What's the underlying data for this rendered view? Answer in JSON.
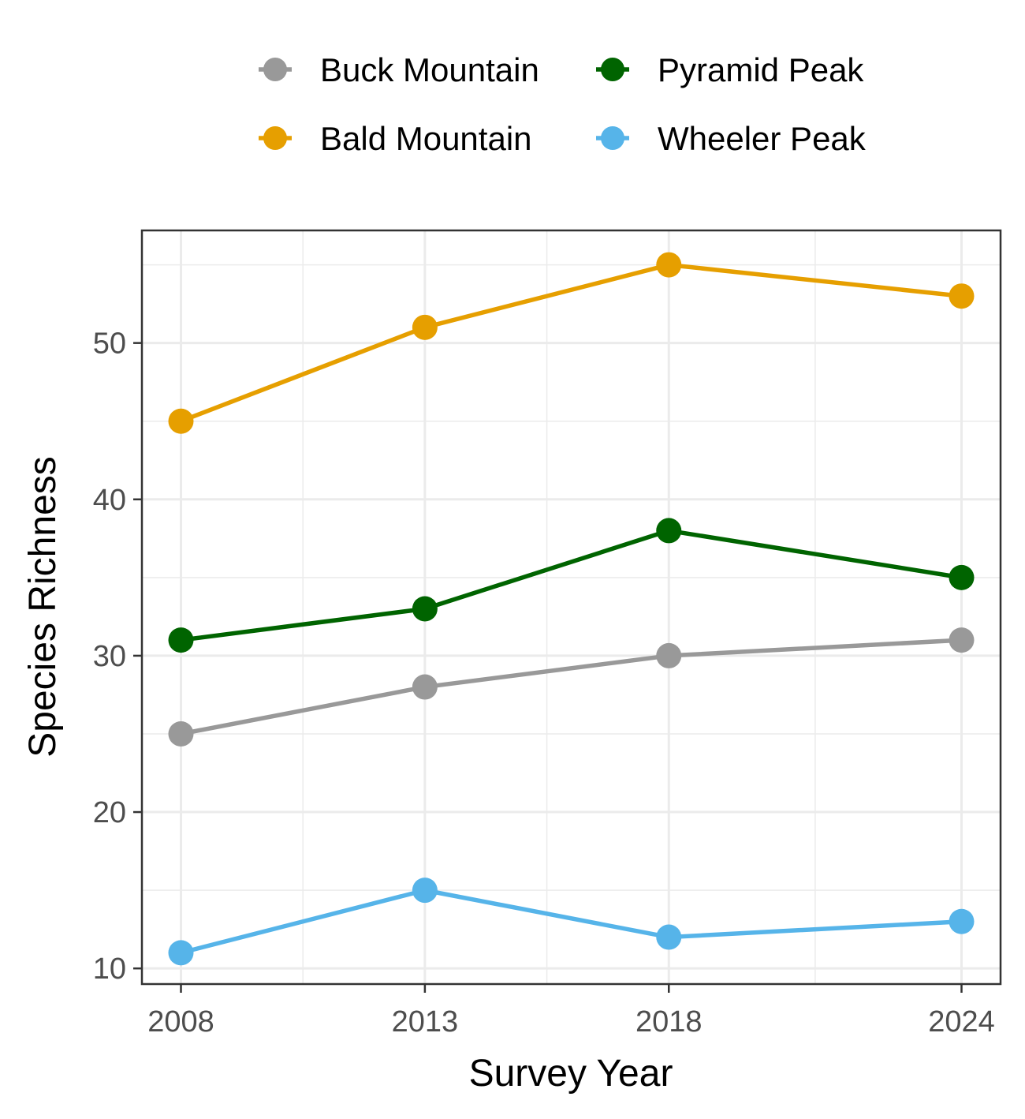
{
  "chart_data": {
    "type": "line",
    "title": "",
    "xlabel": "Survey Year",
    "ylabel": "Species Richness",
    "x": [
      2008,
      2013,
      2018,
      2024
    ],
    "x_ticks": [
      2008,
      2013,
      2018,
      2024
    ],
    "x_tick_labels": [
      "2008",
      "2013",
      "2018",
      "2024"
    ],
    "xlim": [
      2007.2,
      2024.8
    ],
    "y_ticks": [
      10,
      20,
      30,
      40,
      50
    ],
    "y_tick_labels": [
      "10",
      "20",
      "30",
      "40",
      "50"
    ],
    "ylim": [
      9,
      57.2
    ],
    "grid": true,
    "legend_position": "top",
    "series": [
      {
        "name": "Buck Mountain",
        "color": "#999999",
        "values": [
          25,
          28,
          30,
          31
        ]
      },
      {
        "name": "Pyramid Peak",
        "color": "#006400",
        "values": [
          31,
          33,
          38,
          35
        ]
      },
      {
        "name": "Bald Mountain",
        "color": "#E69F00",
        "values": [
          45,
          51,
          55,
          53
        ]
      },
      {
        "name": "Wheeler Peak",
        "color": "#56B4E9",
        "values": [
          11,
          15,
          12,
          13
        ]
      }
    ]
  }
}
